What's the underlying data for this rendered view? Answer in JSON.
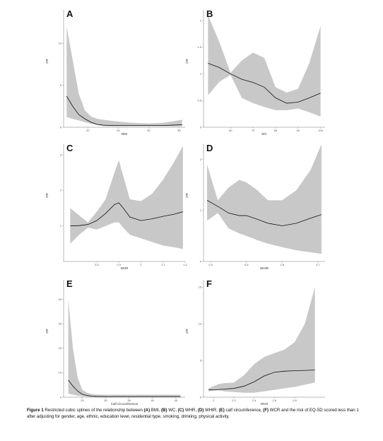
{
  "caption": {
    "figure_label": "Figure 1",
    "segments": [
      {
        "t": " Restricted cubic splines of the relationship between ",
        "b": false
      },
      {
        "t": "(A)",
        "b": true
      },
      {
        "t": " BMI, ",
        "b": false
      },
      {
        "t": "(B)",
        "b": true
      },
      {
        "t": " WC, ",
        "b": false
      },
      {
        "t": "(C)",
        "b": true
      },
      {
        "t": " WHR, ",
        "b": false
      },
      {
        "t": "(D)",
        "b": true
      },
      {
        "t": " WHtR, ",
        "b": false
      },
      {
        "t": "(E)",
        "b": true
      },
      {
        "t": " calf circumference, ",
        "b": false
      },
      {
        "t": "(F)",
        "b": true
      },
      {
        "t": " WCR and the risk of EQ-5D scored less than 1 after adjusting for gender, age, ethnic, education level, residential type, smoking, drinking, physical activity.",
        "b": false
      }
    ]
  },
  "chart_data": [
    {
      "panel": "A",
      "type": "line",
      "xlabel": "BMI",
      "ylabel": "OR",
      "xlim": [
        16,
        36
      ],
      "ylim": [
        0,
        14
      ],
      "xticks": [
        20,
        25,
        30,
        35
      ],
      "yticks": [
        0,
        5,
        10
      ],
      "x": [
        16.5,
        17.5,
        18.5,
        19.5,
        20.5,
        21.5,
        22.5,
        24,
        26,
        28,
        30,
        32,
        34,
        35.5
      ],
      "y": [
        3.7,
        2.5,
        1.5,
        1.0,
        0.6,
        0.35,
        0.25,
        0.2,
        0.2,
        0.2,
        0.2,
        0.2,
        0.25,
        0.3
      ],
      "lower": [
        1.2,
        1.0,
        0.8,
        0.6,
        0.4,
        0.25,
        0.15,
        0.1,
        0.1,
        0.1,
        0.1,
        0.1,
        0.1,
        0.1
      ],
      "upper": [
        12.0,
        8.0,
        4.0,
        2.0,
        1.3,
        1.0,
        0.9,
        0.75,
        0.6,
        0.5,
        0.45,
        0.5,
        0.7,
        0.9
      ]
    },
    {
      "panel": "B",
      "type": "line",
      "xlabel": "WC",
      "ylabel": "OR",
      "xlim": [
        48,
        102
      ],
      "ylim": [
        0,
        2.2
      ],
      "xticks": [
        60,
        70,
        80,
        90,
        100
      ],
      "yticks": [
        0.0,
        0.5,
        1.0,
        1.5,
        2.0
      ],
      "x": [
        50,
        55,
        60,
        65,
        70,
        75,
        80,
        85,
        90,
        95,
        100
      ],
      "y": [
        1.2,
        1.12,
        1.0,
        0.9,
        0.84,
        0.75,
        0.55,
        0.45,
        0.47,
        0.55,
        0.64
      ],
      "lower": [
        0.6,
        0.85,
        0.98,
        0.55,
        0.45,
        0.38,
        0.32,
        0.32,
        0.35,
        0.28,
        0.2
      ],
      "upper": [
        2.1,
        1.6,
        1.02,
        1.25,
        1.4,
        1.3,
        0.75,
        0.65,
        0.72,
        1.2,
        1.9
      ]
    },
    {
      "panel": "C",
      "type": "line",
      "xlabel": "WHR",
      "ylabel": "OR",
      "xlim": [
        0.65,
        1.2
      ],
      "ylim": [
        0,
        3.3
      ],
      "xticks": [
        0.8,
        0.9,
        1.0,
        1.1,
        1.2
      ],
      "yticks": [
        1,
        2,
        3
      ],
      "x": [
        0.68,
        0.72,
        0.76,
        0.8,
        0.84,
        0.88,
        0.9,
        0.92,
        0.95,
        1.0,
        1.05,
        1.1,
        1.15,
        1.19
      ],
      "y": [
        1.0,
        1.01,
        1.04,
        1.15,
        1.35,
        1.6,
        1.65,
        1.5,
        1.25,
        1.15,
        1.2,
        1.27,
        1.33,
        1.4
      ],
      "lower": [
        0.5,
        0.75,
        0.95,
        0.9,
        1.0,
        1.1,
        1.1,
        0.95,
        0.75,
        0.65,
        0.55,
        0.45,
        0.4,
        0.35
      ],
      "upper": [
        1.5,
        1.3,
        1.1,
        1.4,
        1.75,
        2.5,
        2.85,
        2.4,
        1.75,
        1.7,
        1.9,
        2.3,
        2.8,
        3.25
      ]
    },
    {
      "panel": "D",
      "type": "line",
      "xlabel": "WHtR",
      "ylabel": "OR",
      "xlim": [
        0.38,
        0.72
      ],
      "ylim": [
        0,
        2.3
      ],
      "xticks": [
        0.4,
        0.5,
        0.6,
        0.7
      ],
      "yticks": [
        0,
        1,
        2
      ],
      "x": [
        0.39,
        0.42,
        0.45,
        0.48,
        0.5,
        0.53,
        0.56,
        0.6,
        0.64,
        0.68,
        0.71
      ],
      "y": [
        1.2,
        1.08,
        0.95,
        0.9,
        0.9,
        0.83,
        0.75,
        0.7,
        0.75,
        0.85,
        0.92
      ],
      "lower": [
        0.8,
        0.95,
        0.65,
        0.55,
        0.5,
        0.42,
        0.35,
        0.28,
        0.22,
        0.18,
        0.15
      ],
      "upper": [
        1.9,
        1.2,
        1.45,
        1.6,
        1.55,
        1.4,
        1.2,
        1.2,
        1.4,
        1.8,
        2.3
      ]
    },
    {
      "panel": "E",
      "type": "line",
      "xlabel": "Calf Circumference",
      "ylabel": "OR",
      "xlim": [
        21,
        47
      ],
      "ylim": [
        0,
        48
      ],
      "xticks": [
        25,
        30,
        35,
        40,
        45
      ],
      "yticks": [
        0,
        10,
        20,
        30,
        40
      ],
      "x": [
        22,
        23,
        24,
        25,
        26,
        27,
        28,
        30,
        34,
        38,
        42,
        46
      ],
      "y": [
        7.0,
        4.5,
        2.5,
        1.2,
        0.7,
        0.4,
        0.3,
        0.25,
        0.25,
        0.25,
        0.25,
        0.25
      ],
      "lower": [
        1.5,
        1.0,
        0.6,
        0.4,
        0.25,
        0.15,
        0.1,
        0.1,
        0.1,
        0.1,
        0.1,
        0.1
      ],
      "upper": [
        40.0,
        20.0,
        8.0,
        3.0,
        1.8,
        1.3,
        1.1,
        1.0,
        1.0,
        1.0,
        1.0,
        1.0
      ]
    },
    {
      "panel": "F",
      "type": "line",
      "xlabel": "WCR",
      "ylabel": "OR",
      "xlim": [
        1.9,
        3.1
      ],
      "ylim": [
        0,
        16
      ],
      "xticks": [
        2.0,
        2.2,
        2.4,
        2.6,
        2.8
      ],
      "yticks": [
        0,
        5,
        10,
        15
      ],
      "x": [
        1.95,
        2.0,
        2.05,
        2.1,
        2.2,
        2.3,
        2.4,
        2.5,
        2.6,
        2.7,
        2.8,
        2.9,
        3.0
      ],
      "y": [
        1.0,
        1.0,
        1.05,
        1.1,
        1.2,
        1.5,
        2.1,
        2.9,
        3.4,
        3.55,
        3.6,
        3.65,
        3.7
      ],
      "lower": [
        0.8,
        0.9,
        0.95,
        0.8,
        0.7,
        0.6,
        0.6,
        0.8,
        1.0,
        1.2,
        1.4,
        1.7,
        2.0
      ],
      "upper": [
        1.2,
        1.5,
        1.8,
        1.9,
        2.0,
        3.0,
        4.5,
        5.5,
        6.0,
        6.5,
        7.5,
        10.0,
        15.0
      ]
    }
  ]
}
